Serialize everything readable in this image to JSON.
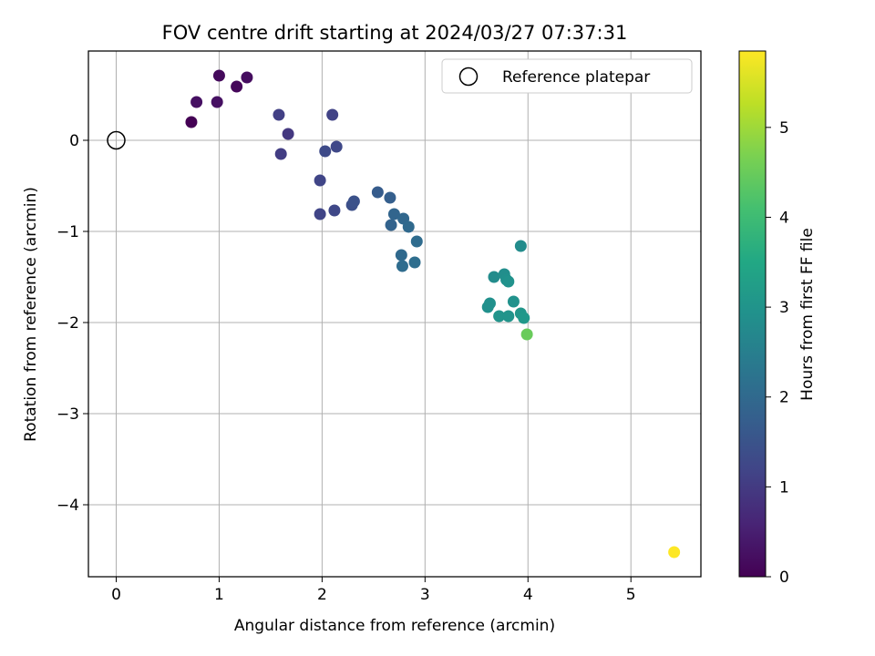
{
  "chart_data": {
    "type": "scatter",
    "title": "FOV centre drift starting at 2024/03/27 07:37:31",
    "xlabel": "Angular distance from reference (arcmin)",
    "ylabel": "Rotation from reference (arcmin)",
    "xlim": [
      -0.27,
      5.68
    ],
    "ylim": [
      -4.79,
      0.98
    ],
    "xticks": [
      0,
      1,
      2,
      3,
      4,
      5
    ],
    "yticks": [
      0,
      -1,
      -2,
      -3,
      -4
    ],
    "xtick_labels": [
      "0",
      "1",
      "2",
      "3",
      "4",
      "5"
    ],
    "ytick_labels": [
      "0",
      "−1",
      "−2",
      "−3",
      "−4"
    ],
    "grid": true,
    "legend": {
      "placement": "upper right",
      "entries": [
        "Reference platepar"
      ]
    },
    "reference_point": {
      "name": "Reference platepar",
      "x": 0,
      "y": 0,
      "marker": "open circle"
    },
    "colorbar": {
      "label": "Hours from first FF file",
      "range": [
        0,
        5.85
      ],
      "ticks": [
        0,
        1,
        2,
        3,
        4,
        5
      ],
      "colormap": "viridis"
    },
    "points": [
      {
        "x": 0.73,
        "y": 0.2,
        "c": 0.0
      },
      {
        "x": 0.78,
        "y": 0.42,
        "c": 0.25
      },
      {
        "x": 0.98,
        "y": 0.42,
        "c": 0.25
      },
      {
        "x": 1.0,
        "y": 0.71,
        "c": 0.15
      },
      {
        "x": 1.17,
        "y": 0.59,
        "c": 0.1
      },
      {
        "x": 1.27,
        "y": 0.69,
        "c": 0.2
      },
      {
        "x": 1.58,
        "y": 0.28,
        "c": 1.1
      },
      {
        "x": 1.6,
        "y": -0.15,
        "c": 1.05
      },
      {
        "x": 1.67,
        "y": 0.07,
        "c": 0.95
      },
      {
        "x": 1.98,
        "y": -0.44,
        "c": 1.2
      },
      {
        "x": 1.98,
        "y": -0.81,
        "c": 1.2
      },
      {
        "x": 2.03,
        "y": -0.12,
        "c": 1.3
      },
      {
        "x": 2.1,
        "y": 0.28,
        "c": 1.15
      },
      {
        "x": 2.12,
        "y": -0.77,
        "c": 1.25
      },
      {
        "x": 2.14,
        "y": -0.07,
        "c": 1.25
      },
      {
        "x": 2.29,
        "y": -0.71,
        "c": 1.4
      },
      {
        "x": 2.31,
        "y": -0.67,
        "c": 1.45
      },
      {
        "x": 2.54,
        "y": -0.57,
        "c": 1.7
      },
      {
        "x": 2.66,
        "y": -0.63,
        "c": 1.75
      },
      {
        "x": 2.67,
        "y": -0.93,
        "c": 1.85
      },
      {
        "x": 2.7,
        "y": -0.81,
        "c": 1.9
      },
      {
        "x": 2.77,
        "y": -1.26,
        "c": 2.0
      },
      {
        "x": 2.78,
        "y": -1.38,
        "c": 2.05
      },
      {
        "x": 2.79,
        "y": -0.86,
        "c": 1.95
      },
      {
        "x": 2.84,
        "y": -0.95,
        "c": 2.0
      },
      {
        "x": 2.9,
        "y": -1.34,
        "c": 2.1
      },
      {
        "x": 2.92,
        "y": -1.11,
        "c": 2.05
      },
      {
        "x": 3.61,
        "y": -1.83,
        "c": 2.9
      },
      {
        "x": 3.63,
        "y": -1.79,
        "c": 2.9
      },
      {
        "x": 3.67,
        "y": -1.5,
        "c": 2.8
      },
      {
        "x": 3.72,
        "y": -1.93,
        "c": 3.0
      },
      {
        "x": 3.77,
        "y": -1.47,
        "c": 2.85
      },
      {
        "x": 3.79,
        "y": -1.53,
        "c": 2.9
      },
      {
        "x": 3.81,
        "y": -1.55,
        "c": 2.95
      },
      {
        "x": 3.81,
        "y": -1.93,
        "c": 3.0
      },
      {
        "x": 3.86,
        "y": -1.77,
        "c": 2.95
      },
      {
        "x": 3.93,
        "y": -1.16,
        "c": 2.8
      },
      {
        "x": 3.93,
        "y": -1.9,
        "c": 3.05
      },
      {
        "x": 3.96,
        "y": -1.95,
        "c": 3.1
      },
      {
        "x": 3.99,
        "y": -2.13,
        "c": 4.5
      },
      {
        "x": 5.42,
        "y": -4.52,
        "c": 5.85
      }
    ]
  }
}
